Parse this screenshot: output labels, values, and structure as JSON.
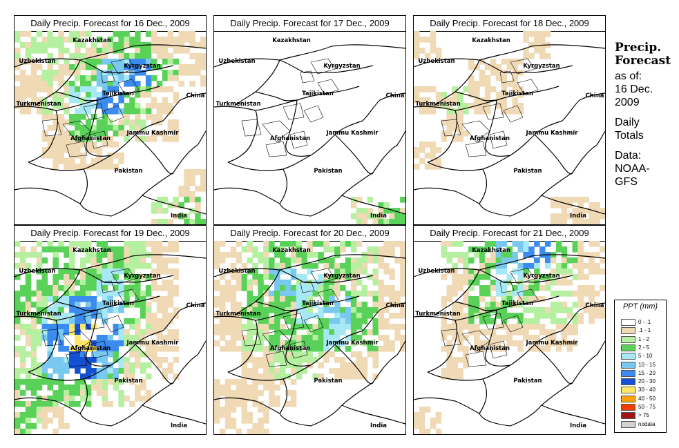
{
  "panels": [
    {
      "title": "Daily Precip. Forecast for  16 Dec., 2009"
    },
    {
      "title": "Daily Precip. Forecast for  17 Dec., 2009"
    },
    {
      "title": "Daily Precip. Forecast for  18 Dec., 2009"
    },
    {
      "title": "Daily Precip. Forecast for  19 Dec., 2009"
    },
    {
      "title": "Daily Precip. Forecast for  20 Dec., 2009"
    },
    {
      "title": "Daily Precip. Forecast for  21 Dec., 2009"
    }
  ],
  "map_labels": {
    "kazakhstan": "Kazakhstan",
    "uzbekistan": "Uzbekistan",
    "kyrgyzstan": "Kyrgyzstan",
    "tajikistan": "Tajikistan",
    "china": "China",
    "turkmenistan": "Turkmenistan",
    "jammu_kashmir": "Jammu Kashmir",
    "afghanistan": "Afghanistan",
    "pakistan": "Pakistan",
    "india": "India"
  },
  "info": {
    "title_line1": "Precip.",
    "title_line2": "Forecast",
    "asof": "as of:",
    "date1": "16 Dec.",
    "date2": "2009",
    "daily1": "Daily",
    "daily2": "Totals",
    "data1": "Data:",
    "data2": "NOAA-",
    "data3": "GFS"
  },
  "legend": {
    "title": "PPT (mm)",
    "items": [
      {
        "label": "0 - .1",
        "color": "#ffffff"
      },
      {
        "label": ".1 - 1",
        "color": "#f0d9b5"
      },
      {
        "label": "1 - 2",
        "color": "#b4f0a0"
      },
      {
        "label": "2 - 5",
        "color": "#5ad25a"
      },
      {
        "label": "5 - 10",
        "color": "#a6e8f5"
      },
      {
        "label": "10 - 15",
        "color": "#78c8f0"
      },
      {
        "label": "15 - 20",
        "color": "#3c8cf0"
      },
      {
        "label": "20 - 30",
        "color": "#1450d2"
      },
      {
        "label": "30 - 40",
        "color": "#ffe664"
      },
      {
        "label": "40 - 50",
        "color": "#ffa000"
      },
      {
        "label": "50 - 75",
        "color": "#f03c00"
      },
      {
        "label": "> 75",
        "color": "#a01414"
      },
      {
        "label": "nodata",
        "color": "#d2d2d2"
      }
    ]
  },
  "precip_patterns": [
    [
      [
        2,
        2,
        2,
        3,
        3,
        1,
        1
      ],
      [
        1,
        2,
        3,
        5,
        6,
        3,
        1
      ],
      [
        1,
        2,
        4,
        6,
        3,
        1,
        0
      ],
      [
        0,
        1,
        3,
        3,
        2,
        1,
        0
      ],
      [
        0,
        1,
        1,
        1,
        0,
        0,
        0
      ],
      [
        0,
        0,
        0,
        0,
        0,
        0,
        1
      ],
      [
        0,
        0,
        0,
        0,
        0,
        2,
        3
      ]
    ],
    [
      [
        0,
        0,
        0,
        0,
        0,
        0,
        0
      ],
      [
        0,
        0,
        0,
        0,
        0,
        0,
        0
      ],
      [
        0,
        0,
        0,
        0,
        0,
        0,
        0
      ],
      [
        0,
        0,
        0,
        0,
        0,
        0,
        0
      ],
      [
        0,
        0,
        0,
        0,
        0,
        0,
        0
      ],
      [
        0,
        0,
        0,
        0,
        0,
        0,
        0
      ],
      [
        0,
        0,
        0,
        0,
        0,
        2,
        3
      ]
    ],
    [
      [
        1,
        0,
        0,
        0,
        1,
        0,
        0
      ],
      [
        0,
        0,
        1,
        1,
        0,
        0,
        0
      ],
      [
        1,
        2,
        1,
        1,
        0,
        0,
        0
      ],
      [
        0,
        1,
        0,
        0,
        0,
        0,
        0
      ],
      [
        1,
        0,
        0,
        0,
        0,
        0,
        0
      ],
      [
        0,
        0,
        0,
        0,
        0,
        0,
        0
      ],
      [
        0,
        0,
        0,
        0,
        0,
        1,
        1
      ]
    ],
    [
      [
        2,
        3,
        2,
        3,
        2,
        1,
        0
      ],
      [
        3,
        3,
        3,
        4,
        3,
        1,
        0
      ],
      [
        3,
        4,
        6,
        5,
        3,
        1,
        0
      ],
      [
        2,
        6,
        8,
        6,
        2,
        1,
        0
      ],
      [
        2,
        5,
        7,
        5,
        2,
        1,
        0
      ],
      [
        3,
        3,
        3,
        2,
        1,
        0,
        0
      ],
      [
        3,
        1,
        0,
        0,
        0,
        0,
        0
      ]
    ],
    [
      [
        1,
        2,
        3,
        3,
        3,
        2,
        1
      ],
      [
        1,
        3,
        5,
        4,
        3,
        2,
        1
      ],
      [
        1,
        3,
        3,
        4,
        5,
        3,
        1
      ],
      [
        1,
        2,
        3,
        3,
        4,
        3,
        1
      ],
      [
        0,
        1,
        2,
        2,
        1,
        1,
        0
      ],
      [
        1,
        1,
        1,
        0,
        0,
        0,
        0
      ],
      [
        1,
        1,
        0,
        0,
        0,
        0,
        0
      ]
    ],
    [
      [
        0,
        2,
        3,
        5,
        6,
        3,
        1
      ],
      [
        0,
        1,
        3,
        4,
        3,
        2,
        1
      ],
      [
        0,
        1,
        3,
        3,
        2,
        2,
        1
      ],
      [
        0,
        1,
        1,
        1,
        1,
        1,
        0
      ],
      [
        0,
        1,
        0,
        0,
        0,
        0,
        0
      ],
      [
        0,
        0,
        0,
        0,
        0,
        0,
        0
      ],
      [
        1,
        0,
        0,
        0,
        0,
        0,
        0
      ]
    ]
  ]
}
